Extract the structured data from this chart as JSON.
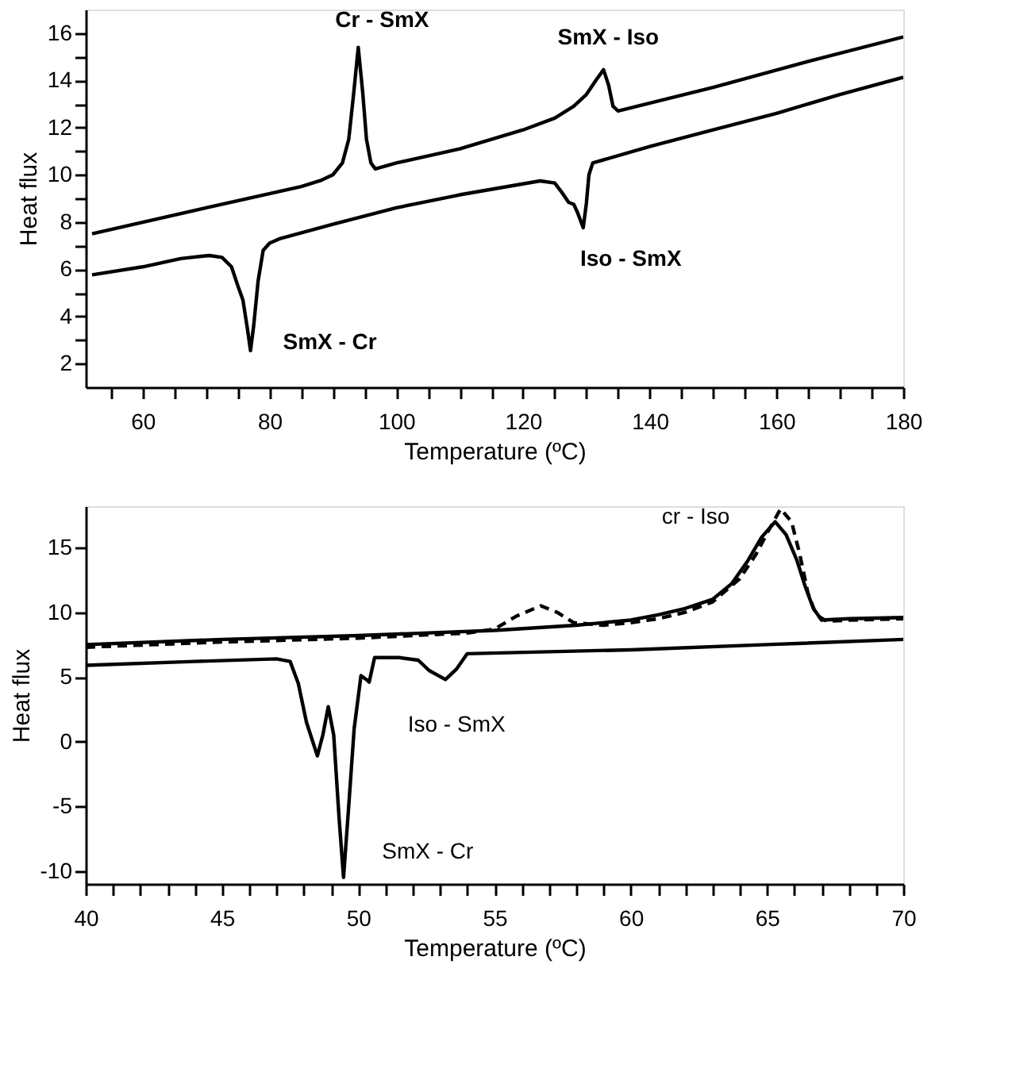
{
  "chart_data": [
    {
      "type": "line",
      "xlabel": "Temperature (ºC)",
      "ylabel": "Heat flux",
      "xlim": [
        51,
        180
      ],
      "ylim": [
        1,
        17
      ],
      "xticks": [
        {
          "value": 55,
          "label": null
        },
        60,
        {
          "value": 65,
          "label": null
        },
        {
          "value": 70,
          "label": null
        },
        {
          "value": 75,
          "label": null
        },
        80,
        {
          "value": 85,
          "label": null
        },
        {
          "value": 90,
          "label": null
        },
        {
          "value": 95,
          "label": null
        },
        100,
        {
          "value": 105,
          "label": null
        },
        {
          "value": 110,
          "label": null
        },
        {
          "value": 115,
          "label": null
        },
        120,
        {
          "value": 125,
          "label": null
        },
        {
          "value": 130,
          "label": null
        },
        {
          "value": 135,
          "label": null
        },
        140,
        {
          "value": 145,
          "label": null
        },
        {
          "value": 150,
          "label": null
        },
        {
          "value": 155,
          "label": null
        },
        160,
        {
          "value": 165,
          "label": null
        },
        {
          "value": 170,
          "label": null
        },
        {
          "value": 175,
          "label": null
        },
        180
      ],
      "yticks": [
        2,
        {
          "value": 3,
          "label": null
        },
        4,
        {
          "value": 5,
          "label": null
        },
        6,
        {
          "value": 7,
          "label": null
        },
        8,
        {
          "value": 9,
          "label": null
        },
        10,
        {
          "value": 11,
          "label": null
        },
        12,
        {
          "value": 13,
          "label": null
        },
        14,
        {
          "value": 15,
          "label": null
        },
        16
      ],
      "grid": false,
      "legend": false,
      "series": [
        {
          "color": "#000000",
          "line_style": "solid",
          "x": [
            52,
            70,
            85,
            88,
            90,
            91.5,
            92.5,
            93.3,
            94,
            94.7,
            95.3,
            96,
            96.7,
            100,
            110,
            120,
            125,
            128,
            130,
            131.5,
            132.7,
            133.5,
            134.2,
            135,
            150,
            165,
            180
          ],
          "values": [
            7.5,
            8.6,
            9.5,
            9.75,
            10.0,
            10.5,
            11.5,
            13.5,
            15.4,
            13.5,
            11.5,
            10.5,
            10.25,
            10.5,
            11.1,
            11.9,
            12.4,
            12.9,
            13.4,
            14.0,
            14.45,
            13.8,
            12.9,
            12.7,
            13.7,
            14.8,
            15.84
          ]
        },
        {
          "color": "#000000",
          "line_style": "solid",
          "x": [
            52,
            60,
            66,
            70.5,
            72.5,
            74,
            75,
            75.8,
            76.5,
            77,
            77.5,
            78.2,
            79,
            80,
            81.7,
            90,
            100,
            110,
            122.7,
            125,
            126,
            127.2,
            128,
            128.6,
            129.5,
            130,
            130.4,
            131,
            140,
            150,
            160,
            170,
            180
          ],
          "values": [
            5.76,
            6.1,
            6.45,
            6.58,
            6.5,
            6.1,
            5.3,
            4.7,
            3.5,
            2.55,
            3.6,
            5.5,
            6.8,
            7.1,
            7.3,
            7.9,
            8.6,
            9.15,
            9.74,
            9.65,
            9.3,
            8.83,
            8.75,
            8.4,
            7.76,
            8.8,
            10.0,
            10.5,
            11.2,
            11.9,
            12.6,
            13.4,
            14.13
          ]
        }
      ],
      "annotations": [
        {
          "text": "Cr - SmX",
          "x": 94,
          "y": 15.4
        },
        {
          "text": "SmX - Iso",
          "x": 132.7,
          "y": 14.45
        },
        {
          "text": "Iso - SmX",
          "x": 129.5,
          "y": 7.76
        },
        {
          "text": "SmX - Cr",
          "x": 77,
          "y": 2.55
        }
      ]
    },
    {
      "type": "line",
      "xlabel": "Temperature (ºC)",
      "ylabel": "Heat flux",
      "xlim": [
        40,
        70
      ],
      "ylim": [
        -11,
        18.2
      ],
      "xticks": [
        40,
        {
          "value": 41,
          "label": null
        },
        {
          "value": 42,
          "label": null
        },
        {
          "value": 43,
          "label": null
        },
        {
          "value": 44,
          "label": null
        },
        45,
        {
          "value": 46,
          "label": null
        },
        {
          "value": 47,
          "label": null
        },
        {
          "value": 48,
          "label": null
        },
        {
          "value": 49,
          "label": null
        },
        50,
        {
          "value": 51,
          "label": null
        },
        {
          "value": 52,
          "label": null
        },
        {
          "value": 53,
          "label": null
        },
        {
          "value": 54,
          "label": null
        },
        55,
        {
          "value": 56,
          "label": null
        },
        {
          "value": 57,
          "label": null
        },
        {
          "value": 58,
          "label": null
        },
        {
          "value": 59,
          "label": null
        },
        60,
        {
          "value": 61,
          "label": null
        },
        {
          "value": 62,
          "label": null
        },
        {
          "value": 63,
          "label": null
        },
        {
          "value": 64,
          "label": null
        },
        65,
        {
          "value": 66,
          "label": null
        },
        {
          "value": 67,
          "label": null
        },
        {
          "value": 68,
          "label": null
        },
        {
          "value": 69,
          "label": null
        },
        70
      ],
      "yticks": [
        -10,
        -5,
        0,
        5,
        10,
        15
      ],
      "grid": false,
      "legend": false,
      "series": [
        {
          "color": "#000000",
          "line_style": "solid",
          "x": [
            40,
            45,
            50,
            55,
            58,
            60,
            61,
            62,
            63,
            63.7,
            64.3,
            64.8,
            65.3,
            65.7,
            66.1,
            66.4,
            66.7,
            67,
            68,
            70
          ],
          "values": [
            7.5,
            7.9,
            8.2,
            8.6,
            9.0,
            9.4,
            9.8,
            10.3,
            11.0,
            12.2,
            14.0,
            15.8,
            17.0,
            16.0,
            14.0,
            12.0,
            10.3,
            9.4,
            9.5,
            9.6
          ]
        },
        {
          "color": "#000000",
          "line_style": "dashed",
          "x": [
            40,
            45,
            50,
            54,
            55,
            55.8,
            56.7,
            57.3,
            57.9,
            59,
            60,
            61,
            62,
            63,
            64,
            64.6,
            65.1,
            65.5,
            65.9,
            66.2,
            66.5,
            66.8,
            67.2,
            68,
            70
          ],
          "values": [
            7.3,
            7.7,
            8.0,
            8.4,
            8.7,
            9.7,
            10.5,
            10.0,
            9.2,
            9.0,
            9.2,
            9.5,
            10.0,
            10.8,
            12.6,
            14.5,
            16.5,
            18.0,
            17.0,
            14.5,
            11.5,
            9.8,
            9.3,
            9.4,
            9.5
          ]
        },
        {
          "color": "#000000",
          "line_style": "solid",
          "x": [
            40,
            44,
            47,
            47.5,
            47.8,
            48.1,
            48.5,
            48.7,
            48.9,
            49.1,
            49.3,
            49.46,
            49.65,
            49.85,
            50.1,
            50.3,
            50.4,
            50.6,
            51.5,
            52.2,
            52.6,
            53.2,
            53.6,
            54,
            60,
            65,
            70
          ],
          "values": [
            5.9,
            6.2,
            6.4,
            6.2,
            4.5,
            1.5,
            -1.1,
            0.5,
            2.7,
            0.5,
            -6.0,
            -10.5,
            -5.0,
            1.0,
            5.1,
            4.8,
            4.6,
            6.5,
            6.5,
            6.3,
            5.5,
            4.8,
            5.6,
            6.8,
            7.1,
            7.5,
            7.9
          ]
        }
      ],
      "annotations": [
        {
          "text": "cr - Iso",
          "x": 65.3,
          "y": 17.0
        },
        {
          "text": "Iso - SmX",
          "x": 53.2,
          "y": 4.8
        },
        {
          "text": "SmX - Cr",
          "x": 49.46,
          "y": -10.5
        }
      ]
    }
  ]
}
